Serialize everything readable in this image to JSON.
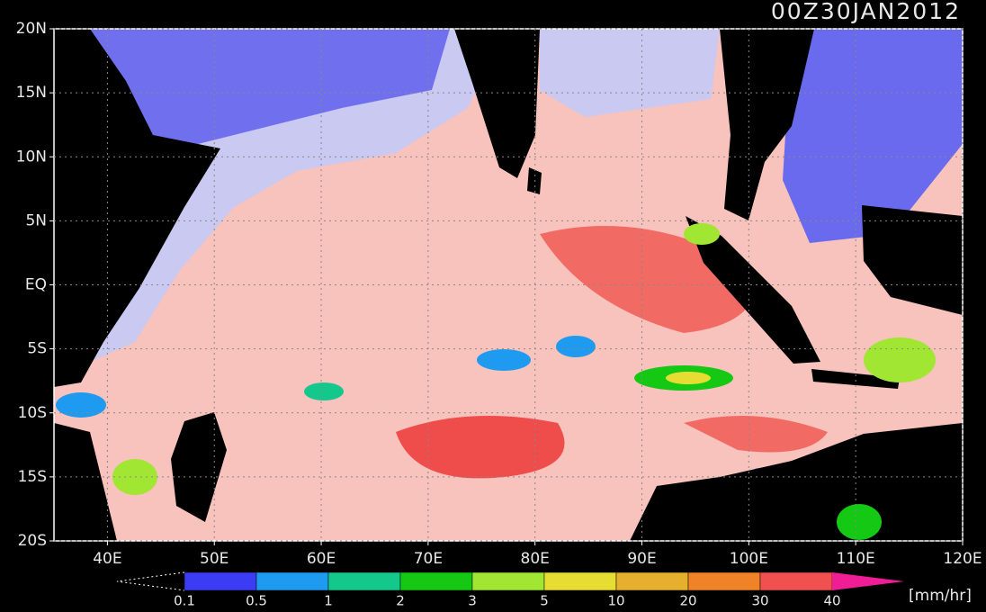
{
  "map": {
    "title": "00Z30JAN2012",
    "xlim": [
      35,
      120
    ],
    "ylim": [
      -20,
      20
    ],
    "xticks": [
      {
        "value": 40,
        "label": "40E"
      },
      {
        "value": 50,
        "label": "50E"
      },
      {
        "value": 60,
        "label": "60E"
      },
      {
        "value": 70,
        "label": "70E"
      },
      {
        "value": 80,
        "label": "80E"
      },
      {
        "value": 90,
        "label": "90E"
      },
      {
        "value": 100,
        "label": "100E"
      },
      {
        "value": 110,
        "label": "110E"
      },
      {
        "value": 120,
        "label": "120E"
      }
    ],
    "yticks": [
      {
        "value": 20,
        "label": "20N"
      },
      {
        "value": 15,
        "label": "15N"
      },
      {
        "value": 10,
        "label": "10N"
      },
      {
        "value": 5,
        "label": "5N"
      },
      {
        "value": 0,
        "label": "EQ"
      },
      {
        "value": -5,
        "label": "5S"
      },
      {
        "value": -10,
        "label": "10S"
      },
      {
        "value": -15,
        "label": "15S"
      },
      {
        "value": -20,
        "label": "20S"
      }
    ],
    "grid": true,
    "colorbar": {
      "levels": [
        0.1,
        0.5,
        1,
        2,
        3,
        5,
        10,
        20,
        30,
        40
      ],
      "colors": [
        "#3c3cf5",
        "#1e9bf0",
        "#14c88c",
        "#14c814",
        "#a0e632",
        "#e6dc32",
        "#e6af2d",
        "#f08228",
        "#f05050",
        "#f01e96"
      ],
      "unit": "[mm/hr]"
    }
  }
}
